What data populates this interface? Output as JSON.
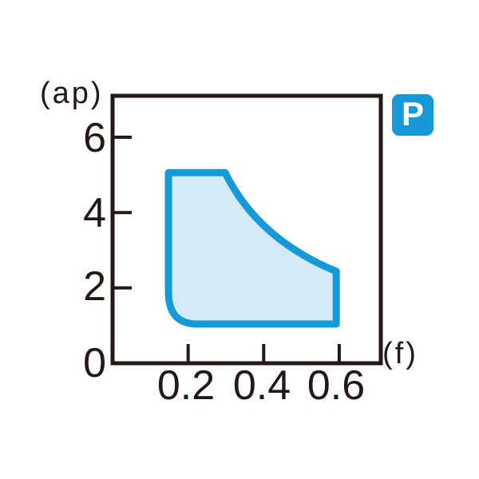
{
  "badge": {
    "label": "P",
    "bg_color": "#1699d8",
    "text_color": "#ffffff"
  },
  "chart_data": {
    "type": "area",
    "title": "",
    "xlabel": "(f)",
    "ylabel": "(ap)",
    "xlim": [
      0,
      0.71
    ],
    "ylim": [
      0,
      7.1
    ],
    "grid": false,
    "axis_color": "#231815",
    "x_ticks": [
      {
        "value": 0.2,
        "label": "0.2"
      },
      {
        "value": 0.4,
        "label": "0.4"
      },
      {
        "value": 0.6,
        "label": "0.6"
      }
    ],
    "y_ticks": [
      {
        "value": 0,
        "label": "0",
        "tick": false
      },
      {
        "value": 2,
        "label": "2",
        "tick": true
      },
      {
        "value": 4,
        "label": "4",
        "tick": true
      },
      {
        "value": 6,
        "label": "6",
        "tick": true
      }
    ],
    "region": {
      "name": "recommended-cutting-range",
      "fill": "#d4eaf8",
      "stroke": "#1699d8",
      "stroke_width": 9,
      "f_range": [
        0.15,
        0.59
      ],
      "ap_range": [
        1.0,
        5.0
      ],
      "outline": [
        {
          "type": "move",
          "f": 0.148,
          "ap": 5.06
        },
        {
          "type": "line",
          "f": 0.298,
          "ap": 5.06
        },
        {
          "type": "quad",
          "cf": 0.384,
          "cap": 3.3,
          "f": 0.592,
          "ap": 2.44
        },
        {
          "type": "line",
          "f": 0.592,
          "ap": 1.04
        },
        {
          "type": "line",
          "f": 0.225,
          "ap": 1.04
        },
        {
          "type": "quad",
          "cf": 0.148,
          "cap": 1.04,
          "f": 0.148,
          "ap": 1.88
        },
        {
          "type": "close"
        }
      ]
    }
  }
}
